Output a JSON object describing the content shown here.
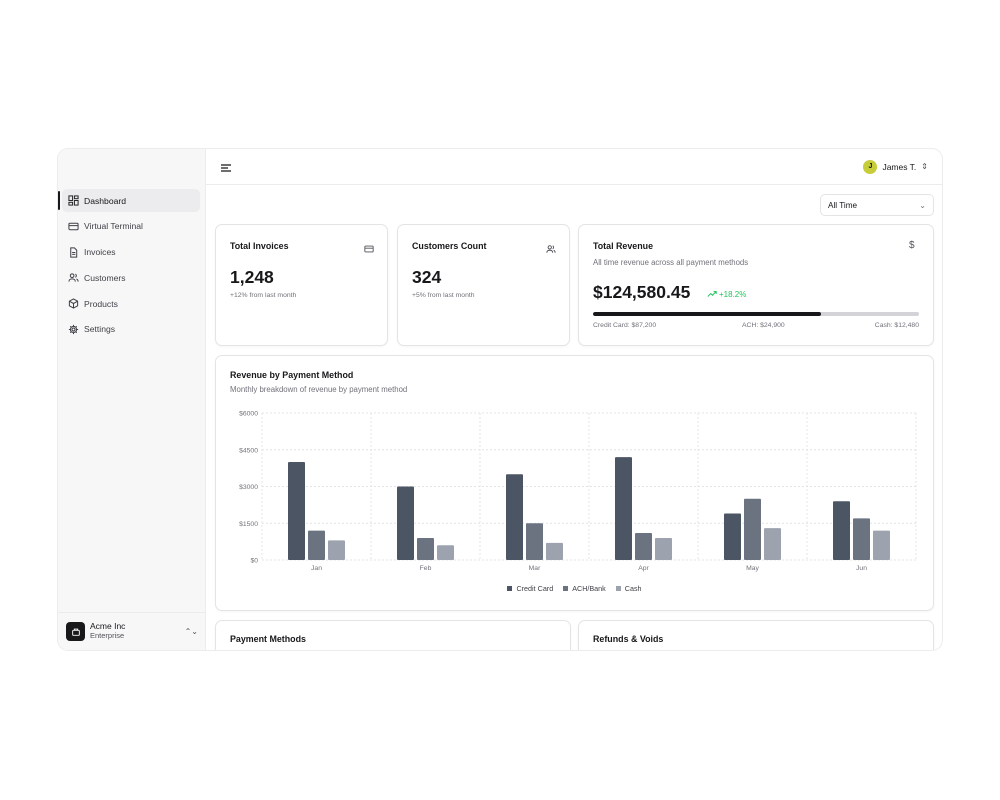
{
  "sidebar": {
    "items": [
      {
        "label": "Dashboard",
        "icon": "dashboard-icon"
      },
      {
        "label": "Virtual Terminal",
        "icon": "credit-card-icon"
      },
      {
        "label": "Invoices",
        "icon": "file-icon"
      },
      {
        "label": "Customers",
        "icon": "users-icon"
      },
      {
        "label": "Products",
        "icon": "box-icon"
      },
      {
        "label": "Settings",
        "icon": "gear-icon"
      }
    ],
    "org": {
      "name": "Acme Inc",
      "plan": "Enterprise"
    }
  },
  "topbar": {
    "user_initial": "J",
    "user_name": "James T."
  },
  "range": {
    "selected": "All Time"
  },
  "cards": {
    "invoices": {
      "title": "Total Invoices",
      "value": "1,248",
      "sub": "+12% from last month"
    },
    "customers": {
      "title": "Customers Count",
      "value": "324",
      "sub": "+5% from last month"
    },
    "revenue": {
      "title": "Total Revenue",
      "desc": "All time revenue across all payment methods",
      "value": "$124,580.45",
      "trend": "+18.2%",
      "progress": 0.7,
      "credit": "Credit Card: $87,200",
      "ach": "ACH: $24,900",
      "cash": "Cash: $12,480"
    }
  },
  "chart_card": {
    "title": "Revenue by Payment Method",
    "desc": "Monthly breakdown of revenue by payment method"
  },
  "bottom": {
    "payment_methods": "Payment Methods",
    "refunds": "Refunds & Voids"
  },
  "colors": {
    "credit": "#4b5563",
    "ach": "#6b7280",
    "cash": "#9ca3af",
    "trend": "#22c55e",
    "avatar": "#c6cd38"
  },
  "chart_data": {
    "type": "bar",
    "categories": [
      "Jan",
      "Feb",
      "Mar",
      "Apr",
      "May",
      "Jun"
    ],
    "series": [
      {
        "name": "Credit Card",
        "values": [
          4000,
          3000,
          3500,
          4200,
          1900,
          2400
        ]
      },
      {
        "name": "ACH/Bank",
        "values": [
          1200,
          900,
          1500,
          1100,
          2500,
          1700
        ]
      },
      {
        "name": "Cash",
        "values": [
          800,
          600,
          700,
          900,
          1300,
          1200
        ]
      }
    ],
    "y_ticks": [
      "$0",
      "$1500",
      "$3000",
      "$4500",
      "$6000"
    ],
    "ylim": [
      0,
      6000
    ],
    "grid": true,
    "legend": "bottom"
  }
}
